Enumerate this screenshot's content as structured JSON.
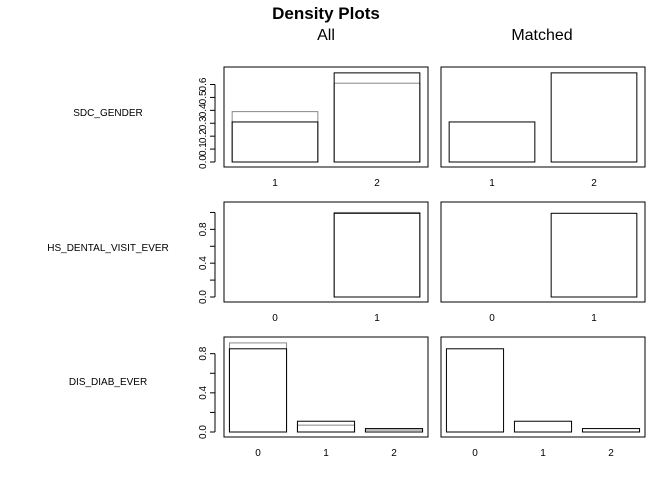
{
  "figure": {
    "title": "Density Plots",
    "columns": [
      "All",
      "Matched"
    ]
  },
  "chart_data": [
    {
      "type": "bar",
      "variable": "SDC_GENDER",
      "categories": [
        "1",
        "2"
      ],
      "ylim": [
        0,
        0.72
      ],
      "yticks": [
        "0.0",
        "0.1",
        "0.2",
        "0.3",
        "0.4",
        "0.5",
        "0.6"
      ],
      "ytick_values": [
        0,
        0.1,
        0.2,
        0.3,
        0.4,
        0.5,
        0.6
      ],
      "series": [
        {
          "values": [
            0.31,
            0.69
          ]
        },
        {
          "values": [
            0.39,
            0.61
          ]
        }
      ],
      "matched": [
        0.31,
        0.69
      ],
      "grid": false
    },
    {
      "type": "bar",
      "variable": "HS_DENTAL_VISIT_EVER",
      "categories": [
        "0",
        "1"
      ],
      "ylim": [
        0,
        1.1
      ],
      "yticks": [
        "0.0",
        "0.4",
        "0.8"
      ],
      "ytick_values": [
        0,
        0.2,
        0.4,
        0.6,
        0.8,
        1.0
      ],
      "ytick_labels_at": [
        0,
        0.4,
        0.8
      ],
      "series": [
        {
          "values": [
            0.0,
            0.99
          ]
        },
        {
          "values": [
            0.0,
            1.0
          ]
        }
      ],
      "matched": [
        0.0,
        0.99
      ],
      "grid": false
    },
    {
      "type": "bar",
      "variable": "DIS_DIAB_EVER",
      "categories": [
        "0",
        "1",
        "2"
      ],
      "ylim": [
        0,
        0.95
      ],
      "yticks": [
        "0.0",
        "0.4",
        "0.8"
      ],
      "ytick_values": [
        0,
        0.2,
        0.4,
        0.6,
        0.8
      ],
      "ytick_labels_at": [
        0,
        0.4,
        0.8
      ],
      "series": [
        {
          "values": [
            0.85,
            0.11,
            0.035
          ]
        },
        {
          "values": [
            0.91,
            0.07,
            0.02
          ]
        }
      ],
      "matched": [
        0.85,
        0.11,
        0.035
      ],
      "grid": false
    }
  ]
}
